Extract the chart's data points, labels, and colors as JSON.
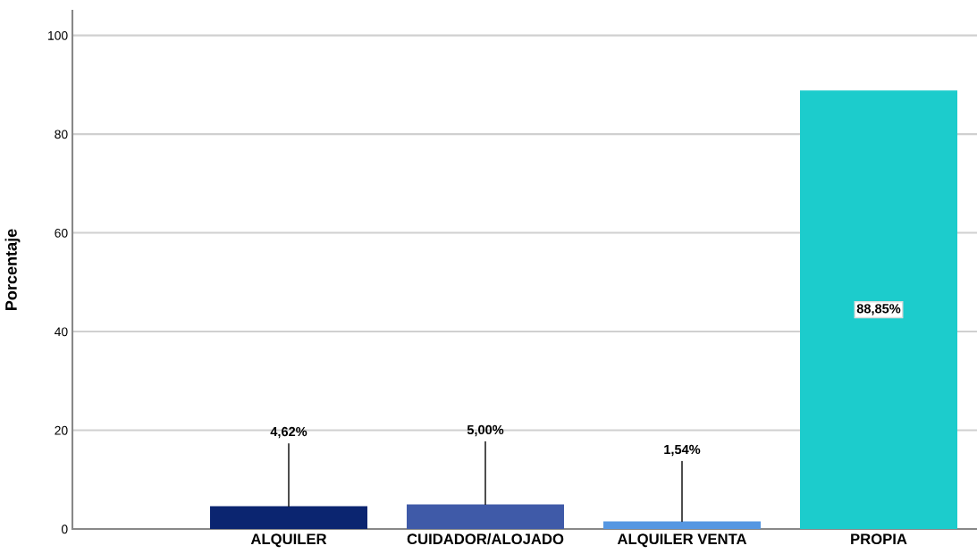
{
  "chart_data": {
    "type": "bar",
    "ylabel": "Porcentaje",
    "categories": [
      "ALQUILER",
      "CUIDADOR/ALOJADO",
      "ALQUILER VENTA",
      "PROPIA"
    ],
    "values": [
      4.62,
      5.0,
      1.54,
      88.85
    ],
    "colors": [
      "#0b2570",
      "#3f5aa8",
      "#5597e2",
      "#1ccccc"
    ],
    "value_labels": [
      "4,62%",
      "5,00%",
      "1,54%",
      "88,85%"
    ],
    "ylim": [
      0,
      105
    ],
    "yticks": [
      0,
      20,
      40,
      60,
      80,
      100
    ],
    "grid": "y",
    "legend": false
  }
}
